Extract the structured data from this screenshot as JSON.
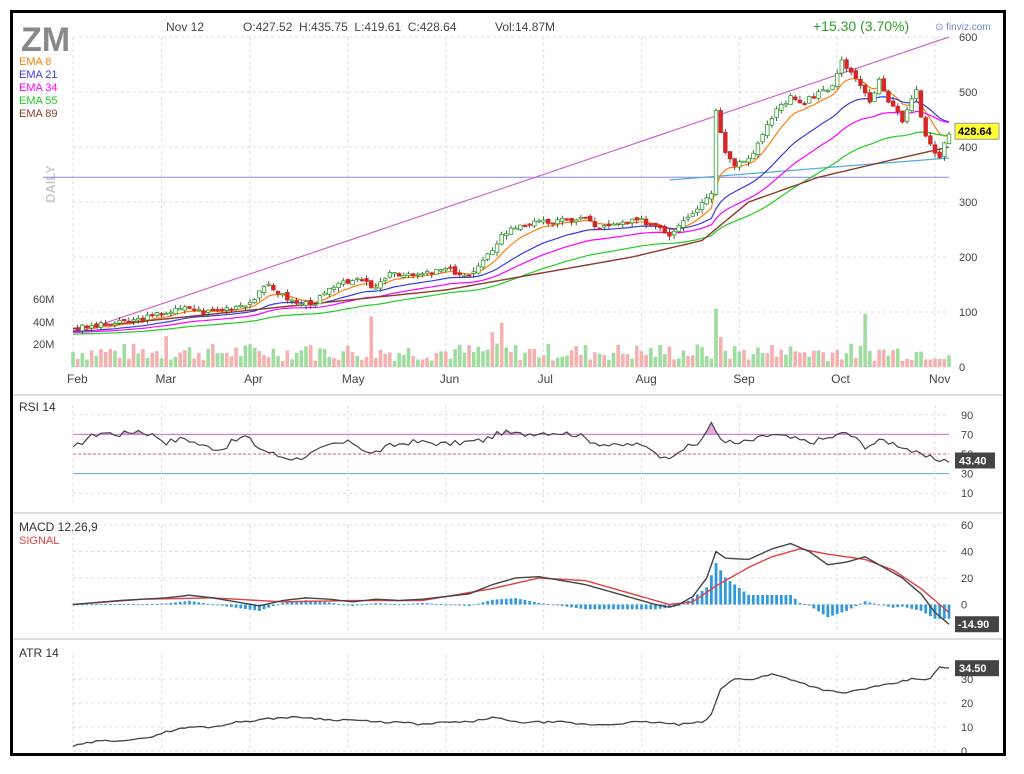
{
  "header": {
    "ticker": "ZM",
    "date": "Nov 12",
    "ohlc": "O:427.52  H:435.75  L:419.61  C:428.64",
    "volume": "Vol:14.87M",
    "change": "+15.30 (3.70%)",
    "brand": "finviz.com"
  },
  "colors": {
    "up": "#2ca02c",
    "down": "#d62728",
    "ema8": "#ff7f0e",
    "ema21": "#3a3ae0",
    "ema34": "#ff00ff",
    "ema55": "#22cc22",
    "ema89": "#8b3a2a",
    "vol_up": "#9fdc9f",
    "vol_down": "#f5b0b0",
    "rsi": "#444444",
    "macd": "#444444",
    "signal": "#e04040",
    "hist": "#3399dd"
  },
  "chart_data": [
    {
      "type": "line",
      "panel": "price",
      "side_label": "DAILY",
      "months": [
        "Feb",
        "Mar",
        "Apr",
        "May",
        "Jun",
        "Jul",
        "Aug",
        "Sep",
        "Oct",
        "Nov"
      ],
      "ylim": [
        0,
        600
      ],
      "yticks": [
        "600",
        "500",
        "400",
        "300",
        "200",
        "100",
        "0"
      ],
      "last_price": "428.64",
      "volume_ticks": [
        "60M",
        "40M",
        "20M"
      ],
      "legend": [
        "EMA 8",
        "EMA 21",
        "EMA 34",
        "EMA 55",
        "EMA 89"
      ],
      "price_points": [
        [
          0,
          70
        ],
        [
          5,
          75
        ],
        [
          10,
          80
        ],
        [
          15,
          88
        ],
        [
          20,
          100
        ],
        [
          25,
          108
        ],
        [
          28,
          100
        ],
        [
          32,
          105
        ],
        [
          38,
          118
        ],
        [
          42,
          150
        ],
        [
          45,
          130
        ],
        [
          48,
          115
        ],
        [
          52,
          118
        ],
        [
          55,
          140
        ],
        [
          60,
          160
        ],
        [
          65,
          145
        ],
        [
          68,
          175
        ],
        [
          72,
          165
        ],
        [
          76,
          170
        ],
        [
          80,
          178
        ],
        [
          85,
          165
        ],
        [
          88,
          190
        ],
        [
          92,
          240
        ],
        [
          96,
          260
        ],
        [
          100,
          262
        ],
        [
          105,
          266
        ],
        [
          110,
          272
        ],
        [
          112,
          255
        ],
        [
          115,
          255
        ],
        [
          118,
          262
        ],
        [
          122,
          266
        ],
        [
          126,
          255
        ],
        [
          128,
          240
        ],
        [
          131,
          270
        ],
        [
          134,
          290
        ],
        [
          137,
          320
        ],
        [
          138,
          465
        ],
        [
          140,
          395
        ],
        [
          142,
          370
        ],
        [
          145,
          380
        ],
        [
          148,
          420
        ],
        [
          151,
          470
        ],
        [
          154,
          490
        ],
        [
          157,
          480
        ],
        [
          160,
          500
        ],
        [
          163,
          510
        ],
        [
          165,
          555
        ],
        [
          168,
          525
        ],
        [
          171,
          480
        ],
        [
          173,
          520
        ],
        [
          175,
          480
        ],
        [
          178,
          450
        ],
        [
          181,
          500
        ],
        [
          183,
          415
        ],
        [
          186,
          380
        ],
        [
          188,
          428
        ]
      ],
      "ema89_points": [
        [
          0,
          70
        ],
        [
          40,
          105
        ],
        [
          80,
          140
        ],
        [
          120,
          200
        ],
        [
          135,
          230
        ],
        [
          145,
          300
        ],
        [
          160,
          345
        ],
        [
          175,
          375
        ],
        [
          188,
          400
        ]
      ],
      "resistance_line": [
        [
          1,
          63
        ],
        [
          188,
          600
        ]
      ],
      "support_line": [
        [
          128,
          340
        ],
        [
          188,
          380
        ]
      ],
      "horizontal_level": 345
    },
    {
      "type": "line",
      "panel": "rsi",
      "title": "RSI 14",
      "value": "43.40",
      "ylim": [
        0,
        100
      ],
      "yticks": [
        "90",
        "70",
        "50",
        "30",
        "10"
      ],
      "levels": [
        70,
        50,
        30
      ],
      "points": [
        [
          0,
          55
        ],
        [
          3,
          66
        ],
        [
          6,
          72
        ],
        [
          10,
          70
        ],
        [
          14,
          74
        ],
        [
          18,
          68
        ],
        [
          20,
          62
        ],
        [
          24,
          66
        ],
        [
          28,
          58
        ],
        [
          32,
          55
        ],
        [
          34,
          62
        ],
        [
          37,
          68
        ],
        [
          40,
          56
        ],
        [
          44,
          48
        ],
        [
          48,
          45
        ],
        [
          52,
          52
        ],
        [
          56,
          60
        ],
        [
          60,
          62
        ],
        [
          64,
          50
        ],
        [
          68,
          58
        ],
        [
          72,
          62
        ],
        [
          76,
          62
        ],
        [
          80,
          60
        ],
        [
          84,
          62
        ],
        [
          88,
          64
        ],
        [
          92,
          72
        ],
        [
          96,
          70
        ],
        [
          100,
          72
        ],
        [
          104,
          72
        ],
        [
          108,
          70
        ],
        [
          112,
          62
        ],
        [
          116,
          58
        ],
        [
          120,
          60
        ],
        [
          124,
          56
        ],
        [
          127,
          45
        ],
        [
          130,
          54
        ],
        [
          134,
          60
        ],
        [
          137,
          80
        ],
        [
          139,
          66
        ],
        [
          142,
          60
        ],
        [
          146,
          64
        ],
        [
          150,
          70
        ],
        [
          154,
          66
        ],
        [
          158,
          62
        ],
        [
          162,
          66
        ],
        [
          166,
          72
        ],
        [
          170,
          58
        ],
        [
          174,
          64
        ],
        [
          178,
          58
        ],
        [
          182,
          48
        ],
        [
          185,
          45
        ],
        [
          188,
          43.4
        ]
      ]
    },
    {
      "type": "line",
      "panel": "macd",
      "title": "MACD 12,26,9",
      "series_label": "SIGNAL",
      "value": "-14.90",
      "ylim": [
        -20,
        60
      ],
      "yticks": [
        "60",
        "40",
        "20",
        "0"
      ],
      "macd_points": [
        [
          0,
          0
        ],
        [
          10,
          3
        ],
        [
          20,
          5
        ],
        [
          25,
          7
        ],
        [
          30,
          5
        ],
        [
          35,
          2
        ],
        [
          40,
          -1
        ],
        [
          45,
          3
        ],
        [
          50,
          5
        ],
        [
          55,
          4
        ],
        [
          60,
          2
        ],
        [
          65,
          4
        ],
        [
          70,
          3
        ],
        [
          75,
          4
        ],
        [
          80,
          6
        ],
        [
          85,
          8
        ],
        [
          90,
          15
        ],
        [
          95,
          20
        ],
        [
          100,
          21
        ],
        [
          105,
          18
        ],
        [
          110,
          15
        ],
        [
          115,
          10
        ],
        [
          120,
          5
        ],
        [
          125,
          0
        ],
        [
          128,
          -2
        ],
        [
          130,
          0
        ],
        [
          133,
          6
        ],
        [
          136,
          20
        ],
        [
          138,
          40
        ],
        [
          140,
          35
        ],
        [
          145,
          34
        ],
        [
          150,
          42
        ],
        [
          154,
          46
        ],
        [
          158,
          40
        ],
        [
          162,
          30
        ],
        [
          166,
          32
        ],
        [
          170,
          36
        ],
        [
          174,
          28
        ],
        [
          178,
          20
        ],
        [
          182,
          8
        ],
        [
          185,
          -6
        ],
        [
          188,
          -14.9
        ]
      ],
      "signal_points": [
        [
          0,
          0
        ],
        [
          15,
          4
        ],
        [
          30,
          5
        ],
        [
          45,
          2
        ],
        [
          60,
          3
        ],
        [
          75,
          3
        ],
        [
          90,
          12
        ],
        [
          100,
          20
        ],
        [
          110,
          18
        ],
        [
          120,
          8
        ],
        [
          128,
          0
        ],
        [
          133,
          2
        ],
        [
          138,
          14
        ],
        [
          145,
          28
        ],
        [
          150,
          36
        ],
        [
          156,
          42
        ],
        [
          162,
          38
        ],
        [
          170,
          34
        ],
        [
          176,
          26
        ],
        [
          182,
          12
        ],
        [
          186,
          0
        ],
        [
          188,
          -6
        ]
      ]
    },
    {
      "type": "line",
      "panel": "atr",
      "title": "ATR 14",
      "value": "34.50",
      "ylim": [
        0,
        40
      ],
      "yticks": [
        "30",
        "20",
        "10",
        "0"
      ],
      "points": [
        [
          0,
          2
        ],
        [
          5,
          4
        ],
        [
          15,
          5
        ],
        [
          20,
          8
        ],
        [
          25,
          10
        ],
        [
          30,
          10
        ],
        [
          35,
          12
        ],
        [
          40,
          13
        ],
        [
          45,
          14
        ],
        [
          50,
          14
        ],
        [
          55,
          13
        ],
        [
          60,
          13
        ],
        [
          65,
          12
        ],
        [
          70,
          12
        ],
        [
          75,
          11
        ],
        [
          80,
          12
        ],
        [
          85,
          12
        ],
        [
          90,
          14
        ],
        [
          95,
          12
        ],
        [
          100,
          12
        ],
        [
          105,
          12
        ],
        [
          110,
          11
        ],
        [
          115,
          11
        ],
        [
          120,
          12
        ],
        [
          125,
          12
        ],
        [
          130,
          11
        ],
        [
          135,
          12
        ],
        [
          137,
          15
        ],
        [
          139,
          26
        ],
        [
          142,
          30
        ],
        [
          146,
          30
        ],
        [
          150,
          32
        ],
        [
          154,
          30
        ],
        [
          160,
          26
        ],
        [
          165,
          24
        ],
        [
          170,
          26
        ],
        [
          176,
          28
        ],
        [
          180,
          30
        ],
        [
          184,
          30
        ],
        [
          186,
          35
        ],
        [
          188,
          34.5
        ]
      ]
    }
  ]
}
